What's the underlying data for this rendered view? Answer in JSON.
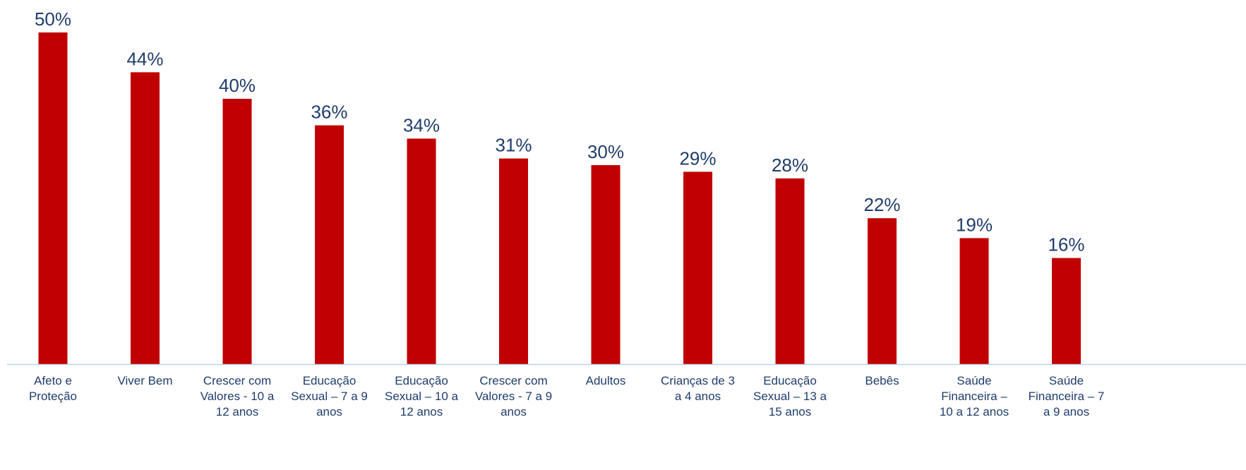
{
  "chart_data": {
    "type": "bar",
    "title": "",
    "xlabel": "",
    "ylabel": "",
    "ylim": [
      0,
      50
    ],
    "grid": false,
    "legend": "none",
    "bar_color": "#c00000",
    "label_color": "#1f3d6b",
    "axis_color": "#bcd2ee",
    "categories": [
      [
        "Afeto e",
        "Proteção"
      ],
      [
        "Viver Bem"
      ],
      [
        "Crescer com",
        "Valores - 10 a",
        "12 anos"
      ],
      [
        "Educação",
        "Sexual – 7 a 9",
        "anos"
      ],
      [
        "Educação",
        "Sexual – 10 a",
        "12 anos"
      ],
      [
        "Crescer com",
        "Valores - 7 a 9",
        "anos"
      ],
      [
        "Adultos"
      ],
      [
        "Crianças de 3",
        "a 4 anos"
      ],
      [
        "Educação",
        "Sexual – 13 a",
        "15 anos"
      ],
      [
        "Bebês"
      ],
      [
        "Saúde",
        "Financeira –",
        "10 a 12 anos"
      ],
      [
        "Saúde",
        "Financeira – 7",
        "a 9 anos"
      ]
    ],
    "values": [
      50,
      44,
      40,
      36,
      34,
      31,
      30,
      29,
      28,
      22,
      19,
      16
    ],
    "value_labels": [
      "50%",
      "44%",
      "40%",
      "36%",
      "34%",
      "31%",
      "30%",
      "29%",
      "28%",
      "22%",
      "19%",
      "16%"
    ]
  }
}
